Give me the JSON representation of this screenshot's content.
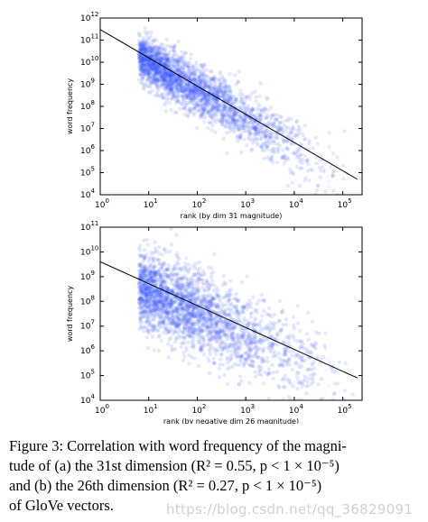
{
  "chart_data": [
    {
      "type": "scatter",
      "title": "",
      "xlabel": "rank (by dim 31 magnitude)",
      "ylabel": "word frequency",
      "xscale": "log",
      "yscale": "log",
      "xlim": [
        1,
        250000
      ],
      "ylim": [
        10000,
        1000000000000
      ],
      "x_ticks": [
        {
          "base": "10",
          "exp": "0"
        },
        {
          "base": "10",
          "exp": "1"
        },
        {
          "base": "10",
          "exp": "2"
        },
        {
          "base": "10",
          "exp": "3"
        },
        {
          "base": "10",
          "exp": "4"
        },
        {
          "base": "10",
          "exp": "5"
        }
      ],
      "y_ticks": [
        {
          "base": "10",
          "exp": "4"
        },
        {
          "base": "10",
          "exp": "5"
        },
        {
          "base": "10",
          "exp": "6"
        },
        {
          "base": "10",
          "exp": "7"
        },
        {
          "base": "10",
          "exp": "8"
        },
        {
          "base": "10",
          "exp": "9"
        },
        {
          "base": "10",
          "exp": "10"
        },
        {
          "base": "10",
          "exp": "11"
        },
        {
          "base": "10",
          "exp": "12"
        }
      ],
      "fit_line": {
        "x": [
          1,
          200000
        ],
        "y": [
          300000000000,
          50000
        ]
      },
      "spike_x": 48000,
      "point_color": "#3355ff",
      "line_color": "#000000"
    },
    {
      "type": "scatter",
      "title": "",
      "xlabel": "rank (by negative dim 26 magnitude)",
      "ylabel": "word frequency",
      "xscale": "log",
      "yscale": "log",
      "xlim": [
        1,
        250000
      ],
      "ylim": [
        10000,
        100000000000
      ],
      "x_ticks": [
        {
          "base": "10",
          "exp": "0"
        },
        {
          "base": "10",
          "exp": "1"
        },
        {
          "base": "10",
          "exp": "2"
        },
        {
          "base": "10",
          "exp": "3"
        },
        {
          "base": "10",
          "exp": "4"
        },
        {
          "base": "10",
          "exp": "5"
        }
      ],
      "y_ticks": [
        {
          "base": "10",
          "exp": "4"
        },
        {
          "base": "10",
          "exp": "5"
        },
        {
          "base": "10",
          "exp": "6"
        },
        {
          "base": "10",
          "exp": "7"
        },
        {
          "base": "10",
          "exp": "8"
        },
        {
          "base": "10",
          "exp": "9"
        },
        {
          "base": "10",
          "exp": "10"
        },
        {
          "base": "10",
          "exp": "11"
        }
      ],
      "fit_line": {
        "x": [
          1,
          200000
        ],
        "y": [
          4000000000,
          80000
        ]
      },
      "spike_x": 48000,
      "point_color": "#3355ff",
      "line_color": "#000000"
    }
  ],
  "caption": {
    "lines": [
      "Figure 3: Correlation with word frequency of the magni-",
      "tude of (a) the 31st dimension (R² = 0.55, p < 1 × 10⁻⁵)",
      "and (b) the 26th dimension (R² = 0.27, p < 1 × 10⁻⁵)",
      "of GloVe vectors."
    ]
  },
  "watermark": "https://blog.csdn.net/qq_36829091"
}
